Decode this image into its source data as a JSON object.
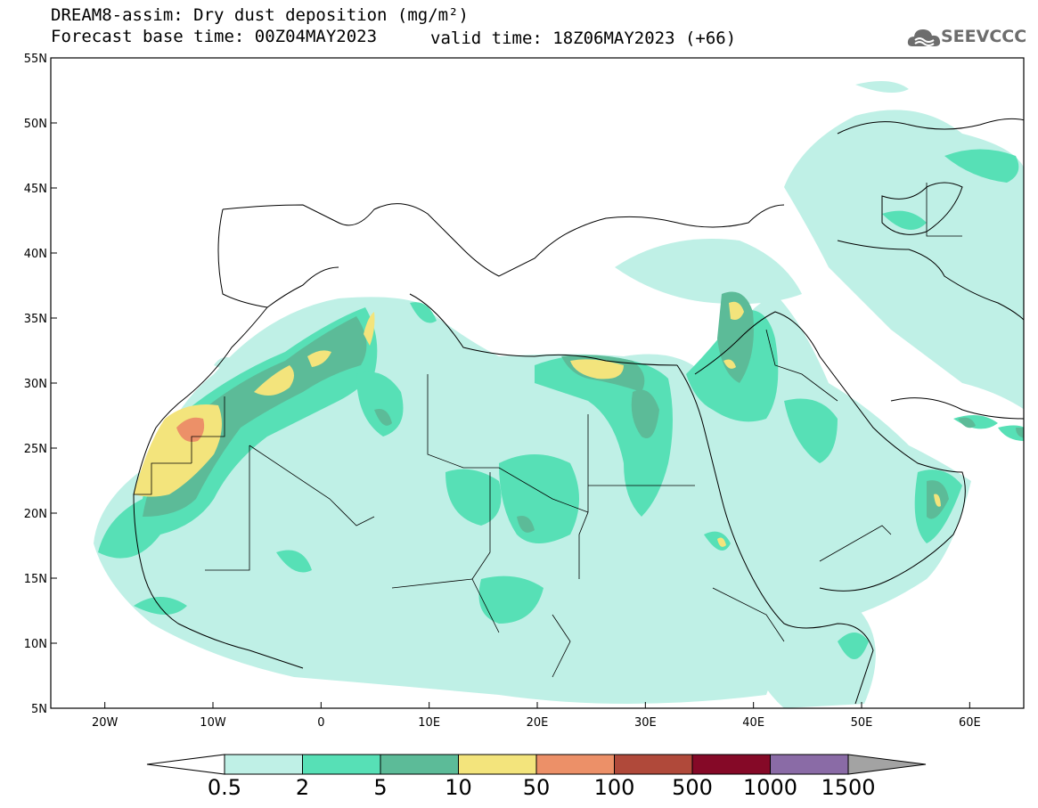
{
  "title_line1": "DREAM8-assim: Dry dust deposition (mg/m²)",
  "title_line2": "Forecast base time: 00Z04MAY2023",
  "valid_time": "valid time: 18Z06MAY2023 (+66)",
  "logo_text": "SEEVCCC",
  "logo_icon": "cloud-icon",
  "map": {
    "lon_range": [
      -25,
      65
    ],
    "lat_range": [
      5,
      55
    ],
    "lat_ticks": [
      {
        "value": 55,
        "label": "55N"
      },
      {
        "value": 50,
        "label": "50N"
      },
      {
        "value": 45,
        "label": "45N"
      },
      {
        "value": 40,
        "label": "40N"
      },
      {
        "value": 35,
        "label": "35N"
      },
      {
        "value": 30,
        "label": "30N"
      },
      {
        "value": 25,
        "label": "25N"
      },
      {
        "value": 20,
        "label": "20N"
      },
      {
        "value": 15,
        "label": "15N"
      },
      {
        "value": 10,
        "label": "10N"
      },
      {
        "value": 5,
        "label": "5N"
      }
    ],
    "lon_ticks": [
      {
        "value": -20,
        "label": "20W"
      },
      {
        "value": -10,
        "label": "10W"
      },
      {
        "value": 0,
        "label": "0"
      },
      {
        "value": 10,
        "label": "10E"
      },
      {
        "value": 20,
        "label": "20E"
      },
      {
        "value": 30,
        "label": "30E"
      },
      {
        "value": 40,
        "label": "40E"
      },
      {
        "value": 50,
        "label": "50E"
      },
      {
        "value": 60,
        "label": "60E"
      }
    ]
  },
  "legend": {
    "labels": [
      "0.5",
      "2",
      "5",
      "10",
      "50",
      "100",
      "500",
      "1000",
      "1500"
    ],
    "colors": [
      "#ffffff",
      "#bff0e6",
      "#57e0b6",
      "#5cbb98",
      "#f3e47c",
      "#ec9068",
      "#b0493a",
      "#850927",
      "#8a6ba6",
      "#a3a3a3"
    ]
  }
}
